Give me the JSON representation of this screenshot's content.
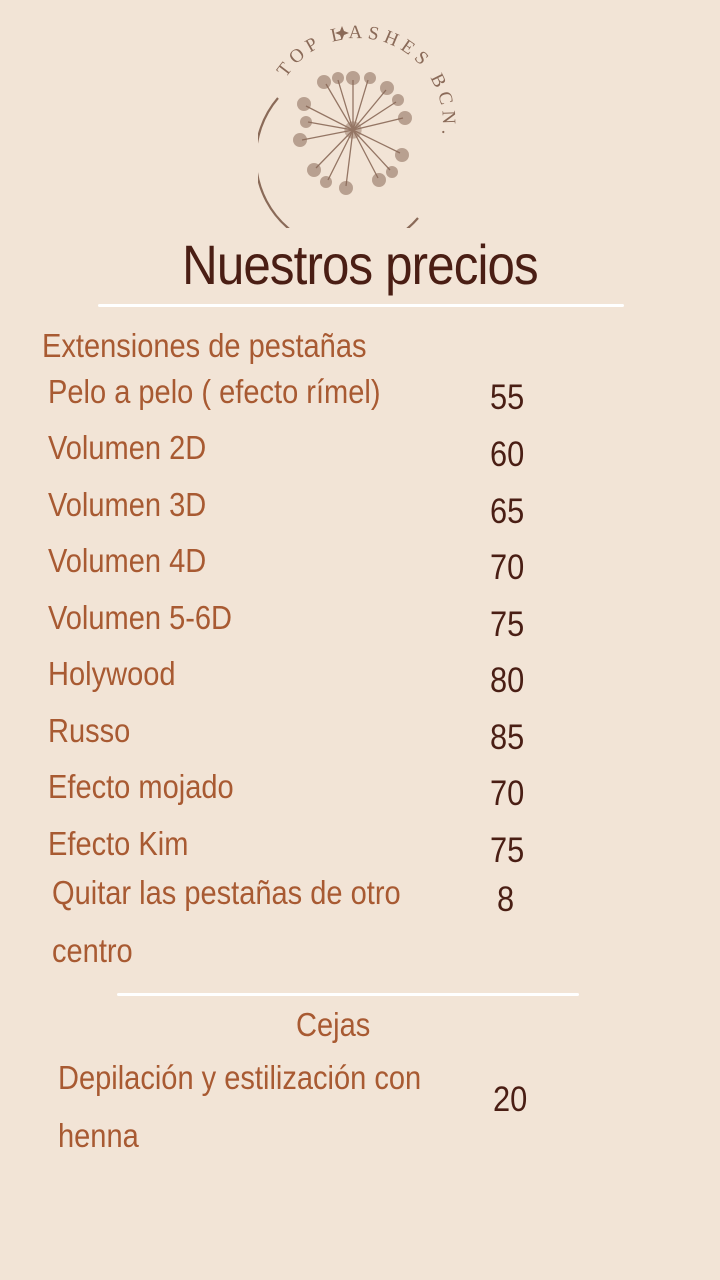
{
  "brand": {
    "name": "TOP LASHES BCN."
  },
  "title": "Nuestros precios",
  "sections": {
    "lashes": {
      "heading": "Extensiones de pestañas",
      "items": [
        {
          "name": "Pelo a pelo ( efecto rímel)",
          "price": "55"
        },
        {
          "name": "Volumen  2D",
          "price": "60"
        },
        {
          "name": "Volumen  3D",
          "price": "65"
        },
        {
          "name": "Volumen  4D",
          "price": "70"
        },
        {
          "name": "Volumen 5-6D",
          "price": "75"
        },
        {
          "name": "Holywood",
          "price": "80"
        },
        {
          "name": "Russo",
          "price": "85"
        },
        {
          "name": "Efecto mojado",
          "price": "70"
        },
        {
          "name": "Efecto Kim",
          "price": "75"
        },
        {
          "name": "Quitar las pestañas de otro centro",
          "price": "8"
        }
      ]
    },
    "brows": {
      "heading": "Cejas",
      "items": [
        {
          "name": "Depilación y estilización con henna",
          "price": "20"
        }
      ]
    }
  },
  "colors": {
    "background": "#f2e4d6",
    "title": "#4a1e14",
    "item": "#a85a32",
    "logo": "#8a6a58"
  },
  "icons": {
    "logo": "dandelion-icon"
  }
}
